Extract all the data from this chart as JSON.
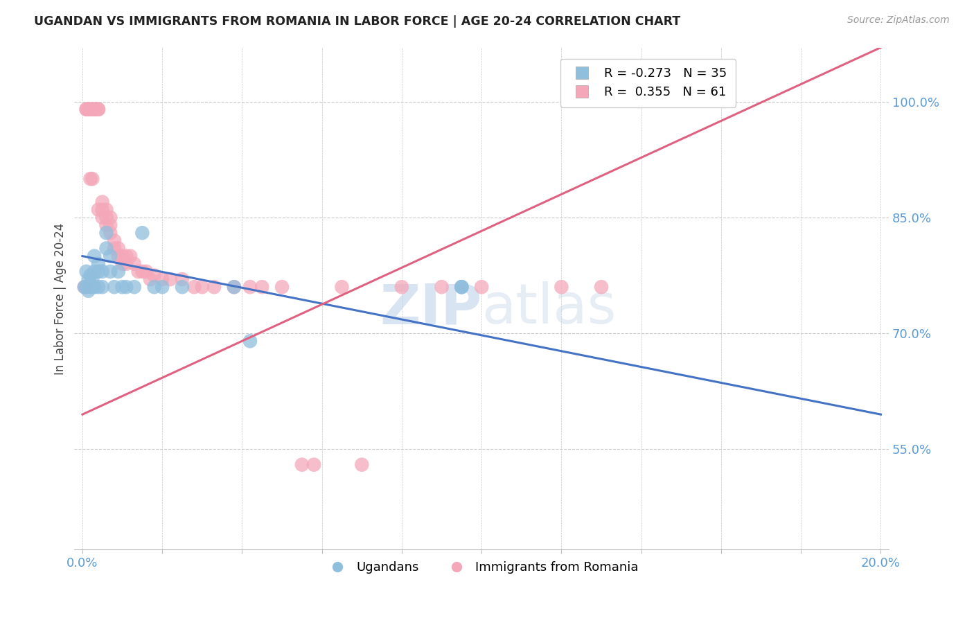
{
  "title": "UGANDAN VS IMMIGRANTS FROM ROMANIA IN LABOR FORCE | AGE 20-24 CORRELATION CHART",
  "source": "Source: ZipAtlas.com",
  "ylabel": "In Labor Force | Age 20-24",
  "legend_labels": [
    "Ugandans",
    "Immigrants from Romania"
  ],
  "r_ugandan": -0.273,
  "n_ugandan": 35,
  "r_romania": 0.355,
  "n_romania": 61,
  "xlim": [
    -0.002,
    0.202
  ],
  "ylim": [
    0.42,
    1.07
  ],
  "yticks": [
    0.55,
    0.7,
    0.85,
    1.0
  ],
  "ytick_labels": [
    "55.0%",
    "70.0%",
    "85.0%",
    "100.0%"
  ],
  "xtick_vals": [
    0.0,
    0.02,
    0.04,
    0.06,
    0.08,
    0.1,
    0.12,
    0.14,
    0.16,
    0.18,
    0.2
  ],
  "xtick_labels": [
    "0.0%",
    "",
    "",
    "",
    "",
    "",
    "",
    "",
    "",
    "",
    "20.0%"
  ],
  "color_ugandan": "#90bedd",
  "color_romania": "#f4a7b9",
  "trendline_color_ugandan": "#4472c4",
  "trendline_color_romania": "#e06080",
  "watermark": "ZIPatlas",
  "watermark_color": "#c8d8e8",
  "background_color": "#ffffff",
  "grid_color": "#c8c8c8",
  "axis_label_color": "#5b9bd5",
  "title_color": "#222222",
  "source_color": "#999999",
  "ylabel_color": "#444444",
  "ugandan_x": [
    0.0005,
    0.001,
    0.001,
    0.0015,
    0.0015,
    0.002,
    0.002,
    0.0025,
    0.0025,
    0.003,
    0.003,
    0.003,
    0.004,
    0.004,
    0.004,
    0.005,
    0.005,
    0.006,
    0.006,
    0.007,
    0.007,
    0.008,
    0.009,
    0.01,
    0.011,
    0.013,
    0.015,
    0.018,
    0.02,
    0.025,
    0.038,
    0.042,
    0.095,
    0.095,
    0.095
  ],
  "ugandan_y": [
    0.76,
    0.78,
    0.76,
    0.77,
    0.755,
    0.775,
    0.76,
    0.77,
    0.76,
    0.8,
    0.78,
    0.76,
    0.79,
    0.78,
    0.76,
    0.78,
    0.76,
    0.83,
    0.81,
    0.8,
    0.78,
    0.76,
    0.78,
    0.76,
    0.76,
    0.76,
    0.83,
    0.76,
    0.76,
    0.76,
    0.76,
    0.69,
    0.76,
    0.76,
    0.76
  ],
  "romania_x": [
    0.0005,
    0.001,
    0.001,
    0.001,
    0.0015,
    0.0015,
    0.002,
    0.002,
    0.002,
    0.0025,
    0.0025,
    0.003,
    0.003,
    0.003,
    0.0035,
    0.004,
    0.004,
    0.004,
    0.005,
    0.005,
    0.005,
    0.006,
    0.006,
    0.006,
    0.007,
    0.007,
    0.007,
    0.008,
    0.008,
    0.009,
    0.009,
    0.01,
    0.01,
    0.011,
    0.011,
    0.012,
    0.013,
    0.014,
    0.015,
    0.016,
    0.017,
    0.018,
    0.02,
    0.022,
    0.025,
    0.028,
    0.03,
    0.033,
    0.038,
    0.042,
    0.045,
    0.05,
    0.055,
    0.058,
    0.065,
    0.07,
    0.08,
    0.09,
    0.1,
    0.12,
    0.13
  ],
  "romania_y": [
    0.76,
    0.99,
    0.99,
    0.76,
    0.99,
    0.99,
    0.99,
    0.99,
    0.9,
    0.99,
    0.9,
    0.99,
    0.99,
    0.99,
    0.99,
    0.99,
    0.99,
    0.86,
    0.86,
    0.87,
    0.85,
    0.86,
    0.85,
    0.84,
    0.85,
    0.84,
    0.83,
    0.82,
    0.81,
    0.81,
    0.8,
    0.8,
    0.79,
    0.8,
    0.79,
    0.8,
    0.79,
    0.78,
    0.78,
    0.78,
    0.77,
    0.775,
    0.77,
    0.77,
    0.77,
    0.76,
    0.76,
    0.76,
    0.76,
    0.76,
    0.76,
    0.76,
    0.53,
    0.53,
    0.76,
    0.53,
    0.76,
    0.76,
    0.76,
    0.76,
    0.76
  ],
  "trend_ugandan_x0": 0.0,
  "trend_ugandan_y0": 0.8,
  "trend_ugandan_x1": 0.2,
  "trend_ugandan_y1": 0.595,
  "trend_romania_x0": 0.0,
  "trend_romania_y0": 0.595,
  "trend_romania_x1": 0.2,
  "trend_romania_y1": 1.07
}
